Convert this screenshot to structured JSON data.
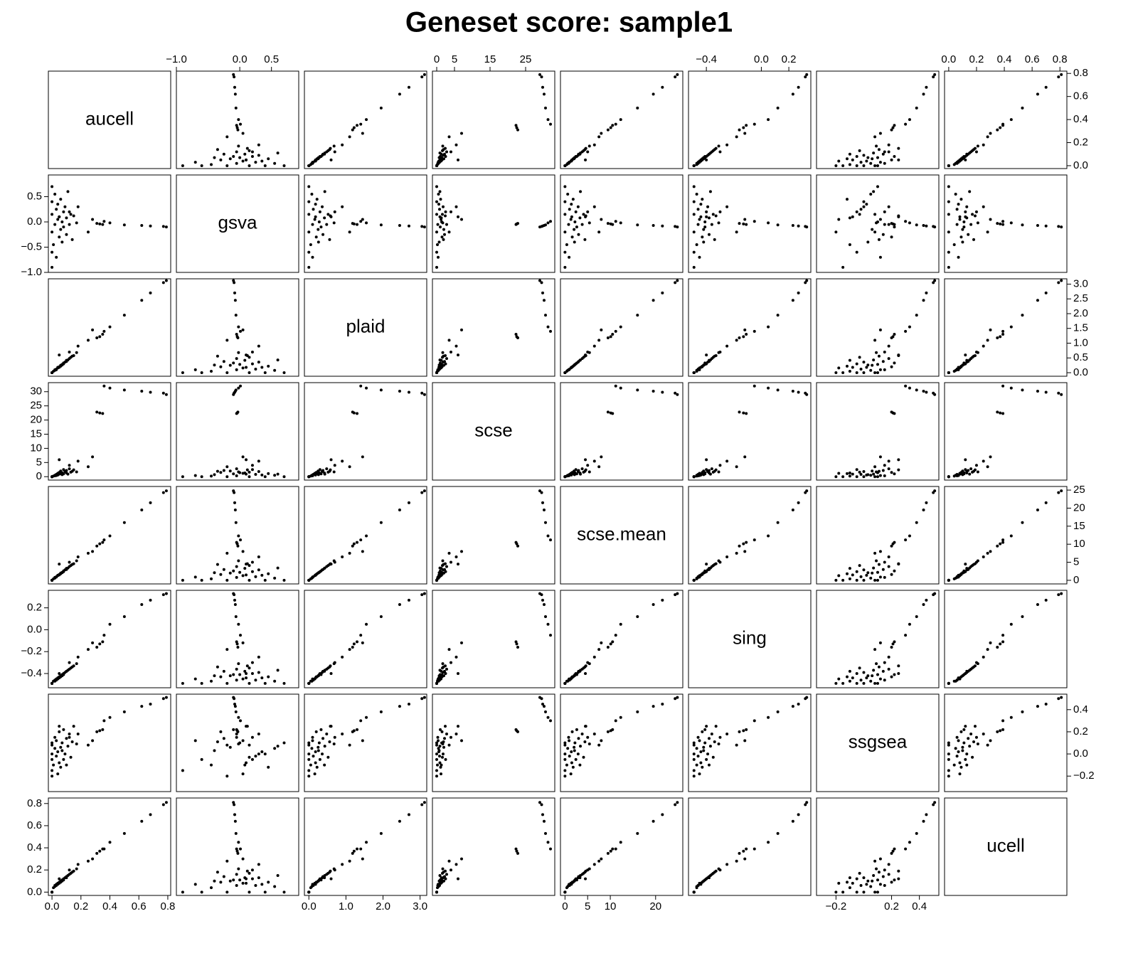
{
  "chart_data": {
    "type": "scatter_matrix",
    "title": "Geneset score: sample1",
    "color": "#000000",
    "variables": [
      {
        "name": "aucell",
        "lim": [
          -0.025,
          0.82
        ],
        "xticks": [
          {
            "value": 0,
            "label": "0.0"
          },
          0.2,
          0.4,
          0.6,
          0.8
        ],
        "yticks": [
          {
            "value": 0,
            "label": "0.0"
          },
          0.2,
          0.4,
          0.6,
          0.8
        ],
        "values": [
          0.79,
          0.77,
          0.68,
          0.62,
          0.5,
          0.4,
          0.36,
          0.33,
          0.31,
          0.35,
          0.28,
          0.18,
          0.05,
          0.25,
          0.12,
          0.0,
          0.0,
          0.0,
          0.0,
          0.0,
          0.0,
          0.01,
          0.02,
          0.02,
          0.03,
          0.03,
          0.04,
          0.04,
          0.05,
          0.05,
          0.06,
          0.06,
          0.07,
          0.07,
          0.08,
          0.08,
          0.09,
          0.1,
          0.1,
          0.11,
          0.12,
          0.13,
          0.14,
          0.15,
          0.17
        ]
      },
      {
        "name": "gsva",
        "lim": [
          -1.0,
          0.93
        ],
        "xticks": [
          {
            "value": -1,
            "label": "−1.0"
          },
          {
            "value": 0,
            "label": "0.0"
          },
          0.5
        ],
        "yticks": [
          {
            "value": -1,
            "label": "−1.0"
          },
          {
            "value": -0.5,
            "label": "−0.5"
          },
          {
            "value": 0,
            "label": "0.0"
          },
          0.5
        ],
        "values": [
          -0.1,
          -0.09,
          -0.08,
          -0.07,
          -0.06,
          -0.02,
          0.01,
          -0.04,
          -0.03,
          -0.05,
          0.05,
          0.3,
          0.1,
          -0.2,
          0.2,
          -0.9,
          -0.6,
          0.7,
          0.4,
          -0.2,
          0.15,
          -0.45,
          0.55,
          -0.05,
          0.25,
          -0.7,
          0.05,
          0.35,
          -0.3,
          0.1,
          -0.15,
          0.45,
          0.0,
          -0.4,
          0.2,
          -0.1,
          0.3,
          -0.25,
          0.08,
          0.6,
          -0.05,
          0.15,
          -0.35,
          0.12,
          -0.02
        ]
      },
      {
        "name": "plaid",
        "lim": [
          -0.12,
          3.18
        ],
        "xticks": [
          {
            "value": 0,
            "label": "0.0"
          },
          {
            "value": 1,
            "label": "1.0"
          },
          {
            "value": 2,
            "label": "2.0"
          },
          {
            "value": 3,
            "label": "3.0"
          }
        ],
        "yticks": [
          {
            "value": 0,
            "label": "0.0"
          },
          0.5,
          {
            "value": 1,
            "label": "1.0"
          },
          1.5,
          {
            "value": 2,
            "label": "2.0"
          },
          2.5,
          {
            "value": 3,
            "label": "3.0"
          }
        ],
        "values": [
          3.12,
          3.05,
          2.7,
          2.45,
          1.95,
          1.55,
          1.4,
          1.22,
          1.18,
          1.3,
          1.45,
          0.9,
          0.6,
          1.1,
          0.7,
          0,
          0,
          0,
          0,
          0,
          0,
          0.05,
          0.08,
          0.1,
          0.12,
          0.1,
          0.16,
          0.18,
          0.2,
          0.18,
          0.25,
          0.22,
          0.28,
          0.26,
          0.3,
          0.33,
          0.36,
          0.38,
          0.42,
          0.43,
          0.48,
          0.52,
          0.56,
          0.58,
          0.68
        ]
      },
      {
        "name": "scse",
        "lim": [
          -1.2,
          33.2
        ],
        "xticks": [
          0,
          5,
          15,
          25
        ],
        "yticks": [
          0,
          5,
          10,
          15,
          20,
          25,
          30
        ],
        "values": [
          29.0,
          29.5,
          29.8,
          30.2,
          30.6,
          31.3,
          32.0,
          22.5,
          22.8,
          22.3,
          7.0,
          5.5,
          6.0,
          3.5,
          4.0,
          0,
          0,
          0,
          0,
          0,
          0,
          0.2,
          0.5,
          0.3,
          0.8,
          0.4,
          1.2,
          0.6,
          1.5,
          0.9,
          2.0,
          1.1,
          1.4,
          0.7,
          2.5,
          1.0,
          1.8,
          2.2,
          1.3,
          0.9,
          2.8,
          1.6,
          1.9,
          2.4,
          1.7
        ]
      },
      {
        "name": "scse.mean",
        "lim": [
          -1,
          26
        ],
        "xticks": [
          0,
          5,
          10,
          20
        ],
        "yticks": [
          0,
          5,
          10,
          15,
          20,
          25
        ],
        "values": [
          24.8,
          24.3,
          21.5,
          19.5,
          16.0,
          12.3,
          11.2,
          10.1,
          9.5,
          10.5,
          8.0,
          6.5,
          4.5,
          7.5,
          5.0,
          0,
          0,
          0,
          0,
          0,
          0,
          0.4,
          0.6,
          0.8,
          1.0,
          0.9,
          1.3,
          1.4,
          1.6,
          1.5,
          2.0,
          1.8,
          2.2,
          2.1,
          2.4,
          2.6,
          2.9,
          3.0,
          3.3,
          3.4,
          3.8,
          4.1,
          4.4,
          4.6,
          5.4
        ]
      },
      {
        "name": "sing",
        "lim": [
          -0.53,
          0.36
        ],
        "xticks": [
          {
            "value": -0.4,
            "label": "−0.4"
          },
          {
            "value": 0,
            "label": "0.0"
          },
          0.2
        ],
        "yticks": [
          {
            "value": -0.4,
            "label": "−0.4"
          },
          {
            "value": -0.2,
            "label": "−0.2"
          },
          {
            "value": 0,
            "label": "0.0"
          },
          0.2
        ],
        "values": [
          0.33,
          0.32,
          0.27,
          0.23,
          0.12,
          0.05,
          -0.05,
          -0.13,
          -0.16,
          -0.11,
          -0.12,
          -0.25,
          -0.4,
          -0.18,
          -0.3,
          -0.49,
          -0.49,
          -0.49,
          -0.49,
          -0.49,
          -0.49,
          -0.47,
          -0.47,
          -0.46,
          -0.46,
          -0.45,
          -0.45,
          -0.44,
          -0.43,
          -0.44,
          -0.42,
          -0.43,
          -0.41,
          -0.42,
          -0.4,
          -0.41,
          -0.39,
          -0.38,
          -0.38,
          -0.37,
          -0.36,
          -0.35,
          -0.34,
          -0.33,
          -0.31
        ]
      },
      {
        "name": "ssgsea",
        "lim": [
          -0.34,
          0.54
        ],
        "xticks": [
          {
            "value": -0.2,
            "label": "−0.2"
          },
          0.2,
          0.4
        ],
        "yticks": [
          {
            "value": -0.2,
            "label": "−0.2"
          },
          {
            "value": 0,
            "label": "0.0"
          },
          0.2,
          0.4
        ],
        "values": [
          0.51,
          0.5,
          0.45,
          0.43,
          0.38,
          0.33,
          0.3,
          0.21,
          0.2,
          0.22,
          0.12,
          0.18,
          0.25,
          0.08,
          0.15,
          -0.15,
          -0.05,
          0.1,
          0.0,
          -0.2,
          0.08,
          -0.1,
          0.05,
          0.15,
          -0.02,
          0.12,
          -0.18,
          0.02,
          0.2,
          -0.08,
          0.06,
          -0.12,
          0.1,
          0.03,
          -0.05,
          0.22,
          0.0,
          0.14,
          -0.1,
          0.07,
          0.18,
          -0.03,
          0.11,
          0.25,
          0.09
        ]
      },
      {
        "name": "ucell",
        "lim": [
          -0.03,
          0.85
        ],
        "xticks": [
          {
            "value": 0,
            "label": "0.0"
          },
          0.2,
          0.4,
          0.6,
          0.8
        ],
        "yticks": [
          {
            "value": 0,
            "label": "0.0"
          },
          0.2,
          0.4,
          0.6,
          0.8
        ],
        "values": [
          0.81,
          0.79,
          0.7,
          0.64,
          0.53,
          0.45,
          0.39,
          0.37,
          0.35,
          0.39,
          0.3,
          0.25,
          0.12,
          0.28,
          0.2,
          0.0,
          0.0,
          0.0,
          0.0,
          0.0,
          0.0,
          0.04,
          0.05,
          0.06,
          0.06,
          0.07,
          0.08,
          0.07,
          0.09,
          0.08,
          0.1,
          0.09,
          0.11,
          0.1,
          0.12,
          0.11,
          0.13,
          0.14,
          0.13,
          0.15,
          0.16,
          0.17,
          0.18,
          0.19,
          0.21
        ]
      }
    ]
  }
}
